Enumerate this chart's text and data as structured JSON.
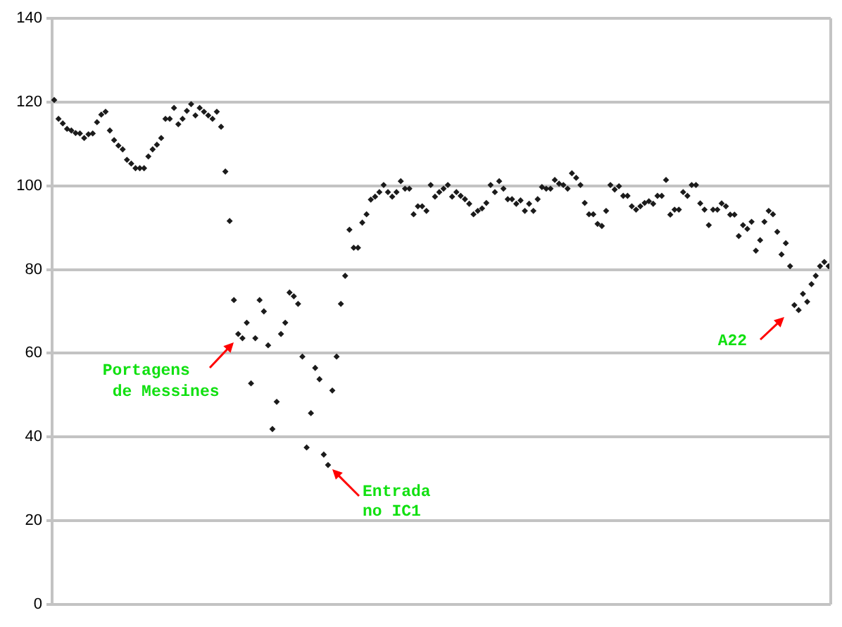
{
  "chart_data": {
    "type": "scatter",
    "categories": [
      null,
      null,
      null,
      null,
      null,
      null,
      null,
      null,
      null,
      null,
      null,
      null,
      null,
      null,
      null,
      null,
      null,
      null,
      null,
      null,
      null,
      null,
      null,
      null,
      null,
      null,
      null,
      null,
      null,
      null,
      null,
      null,
      null,
      null,
      null,
      null,
      null,
      null,
      null,
      null,
      null,
      null,
      null,
      null,
      null,
      null,
      null,
      null,
      null,
      null,
      null,
      null,
      null,
      null,
      null,
      null,
      null,
      null,
      null,
      null,
      null,
      null,
      null,
      null,
      null,
      null,
      null,
      null,
      null,
      null,
      null,
      null,
      null,
      null,
      null,
      null,
      null,
      null,
      null,
      null,
      null,
      null,
      null,
      null,
      null,
      null,
      null,
      null,
      null,
      null,
      null,
      null,
      null,
      null,
      null,
      null,
      null,
      null,
      null,
      null,
      null,
      null,
      null,
      null,
      null,
      null,
      null,
      null,
      null,
      null,
      null,
      null,
      null,
      null,
      null,
      null,
      null,
      null,
      null,
      null,
      null,
      null,
      null,
      null,
      null,
      null,
      null,
      null,
      null,
      null,
      null,
      null,
      null,
      null,
      null,
      null,
      null,
      null,
      null,
      null,
      null,
      null,
      null,
      null,
      null,
      null,
      null,
      null,
      null,
      null,
      null,
      null,
      null,
      null,
      null,
      null,
      null,
      null,
      null,
      null,
      null,
      null,
      null,
      null,
      null,
      null,
      null,
      null,
      null,
      null,
      null,
      null,
      null,
      null,
      null,
      null,
      null,
      null,
      null,
      null,
      null,
      null
    ],
    "values": [
      120.5,
      116.0,
      114.9,
      113.6,
      113.2,
      112.6,
      112.5,
      111.4,
      112.3,
      112.5,
      115.2,
      117.0,
      117.7,
      113.2,
      110.9,
      109.6,
      108.7,
      106.2,
      105.3,
      104.2,
      104.2,
      104.2,
      107.0,
      108.7,
      109.8,
      111.4,
      116.0,
      116.0,
      118.6,
      114.7,
      116.0,
      117.9,
      119.5,
      116.8,
      118.6,
      117.7,
      116.8,
      116.0,
      117.7,
      114.1,
      103.4,
      91.6,
      72.7,
      64.6,
      63.6,
      67.3,
      52.8,
      63.6,
      72.7,
      70.0,
      61.9,
      41.9,
      48.4,
      64.6,
      67.3,
      74.5,
      73.6,
      71.8,
      59.2,
      37.5,
      45.7,
      56.5,
      53.8,
      35.8,
      33.3,
      51.1,
      59.2,
      71.8,
      78.5,
      89.5,
      85.2,
      85.2,
      91.2,
      93.2,
      96.7,
      97.4,
      98.5,
      100.2,
      98.5,
      97.4,
      98.5,
      101.1,
      99.3,
      99.3,
      93.2,
      95.1,
      95.1,
      94.0,
      100.2,
      97.4,
      98.5,
      99.3,
      100.2,
      97.4,
      98.5,
      97.6,
      96.8,
      95.7,
      93.2,
      94.0,
      94.6,
      95.9,
      100.2,
      98.5,
      101.1,
      99.3,
      96.8,
      96.8,
      95.7,
      96.5,
      94.0,
      95.7,
      94.0,
      96.8,
      99.7,
      99.3,
      99.3,
      101.4,
      100.5,
      100.2,
      99.3,
      103.0,
      101.9,
      100.2,
      95.9,
      93.2,
      93.2,
      90.9,
      90.4,
      94.0,
      100.2,
      99.1,
      99.9,
      97.6,
      97.6,
      95.1,
      94.3,
      95.1,
      95.9,
      96.3,
      95.7,
      97.6,
      97.6,
      101.4,
      93.1,
      94.3,
      94.3,
      98.5,
      97.6,
      100.2,
      100.2,
      95.8,
      94.3,
      90.6,
      94.3,
      94.3,
      95.8,
      95.1,
      93.1,
      93.1,
      88.0,
      90.6,
      89.7,
      91.4,
      84.5,
      87.0,
      91.4,
      94.0,
      93.2,
      89.0,
      83.6,
      86.3,
      80.8,
      71.5,
      70.3,
      74.2,
      72.3,
      76.5,
      78.5,
      80.8,
      81.8,
      80.8
    ],
    "color": "#1b1b1b",
    "marker": "diamond",
    "legend": false,
    "grid": "y",
    "tick_labels": "y",
    "ylim": [
      0,
      140
    ],
    "yticks": [
      0,
      20,
      40,
      60,
      80,
      100,
      120,
      140
    ],
    "annotations": [
      "Portagens\nde Messines",
      "Entrada\nno IC1",
      "A22"
    ]
  }
}
